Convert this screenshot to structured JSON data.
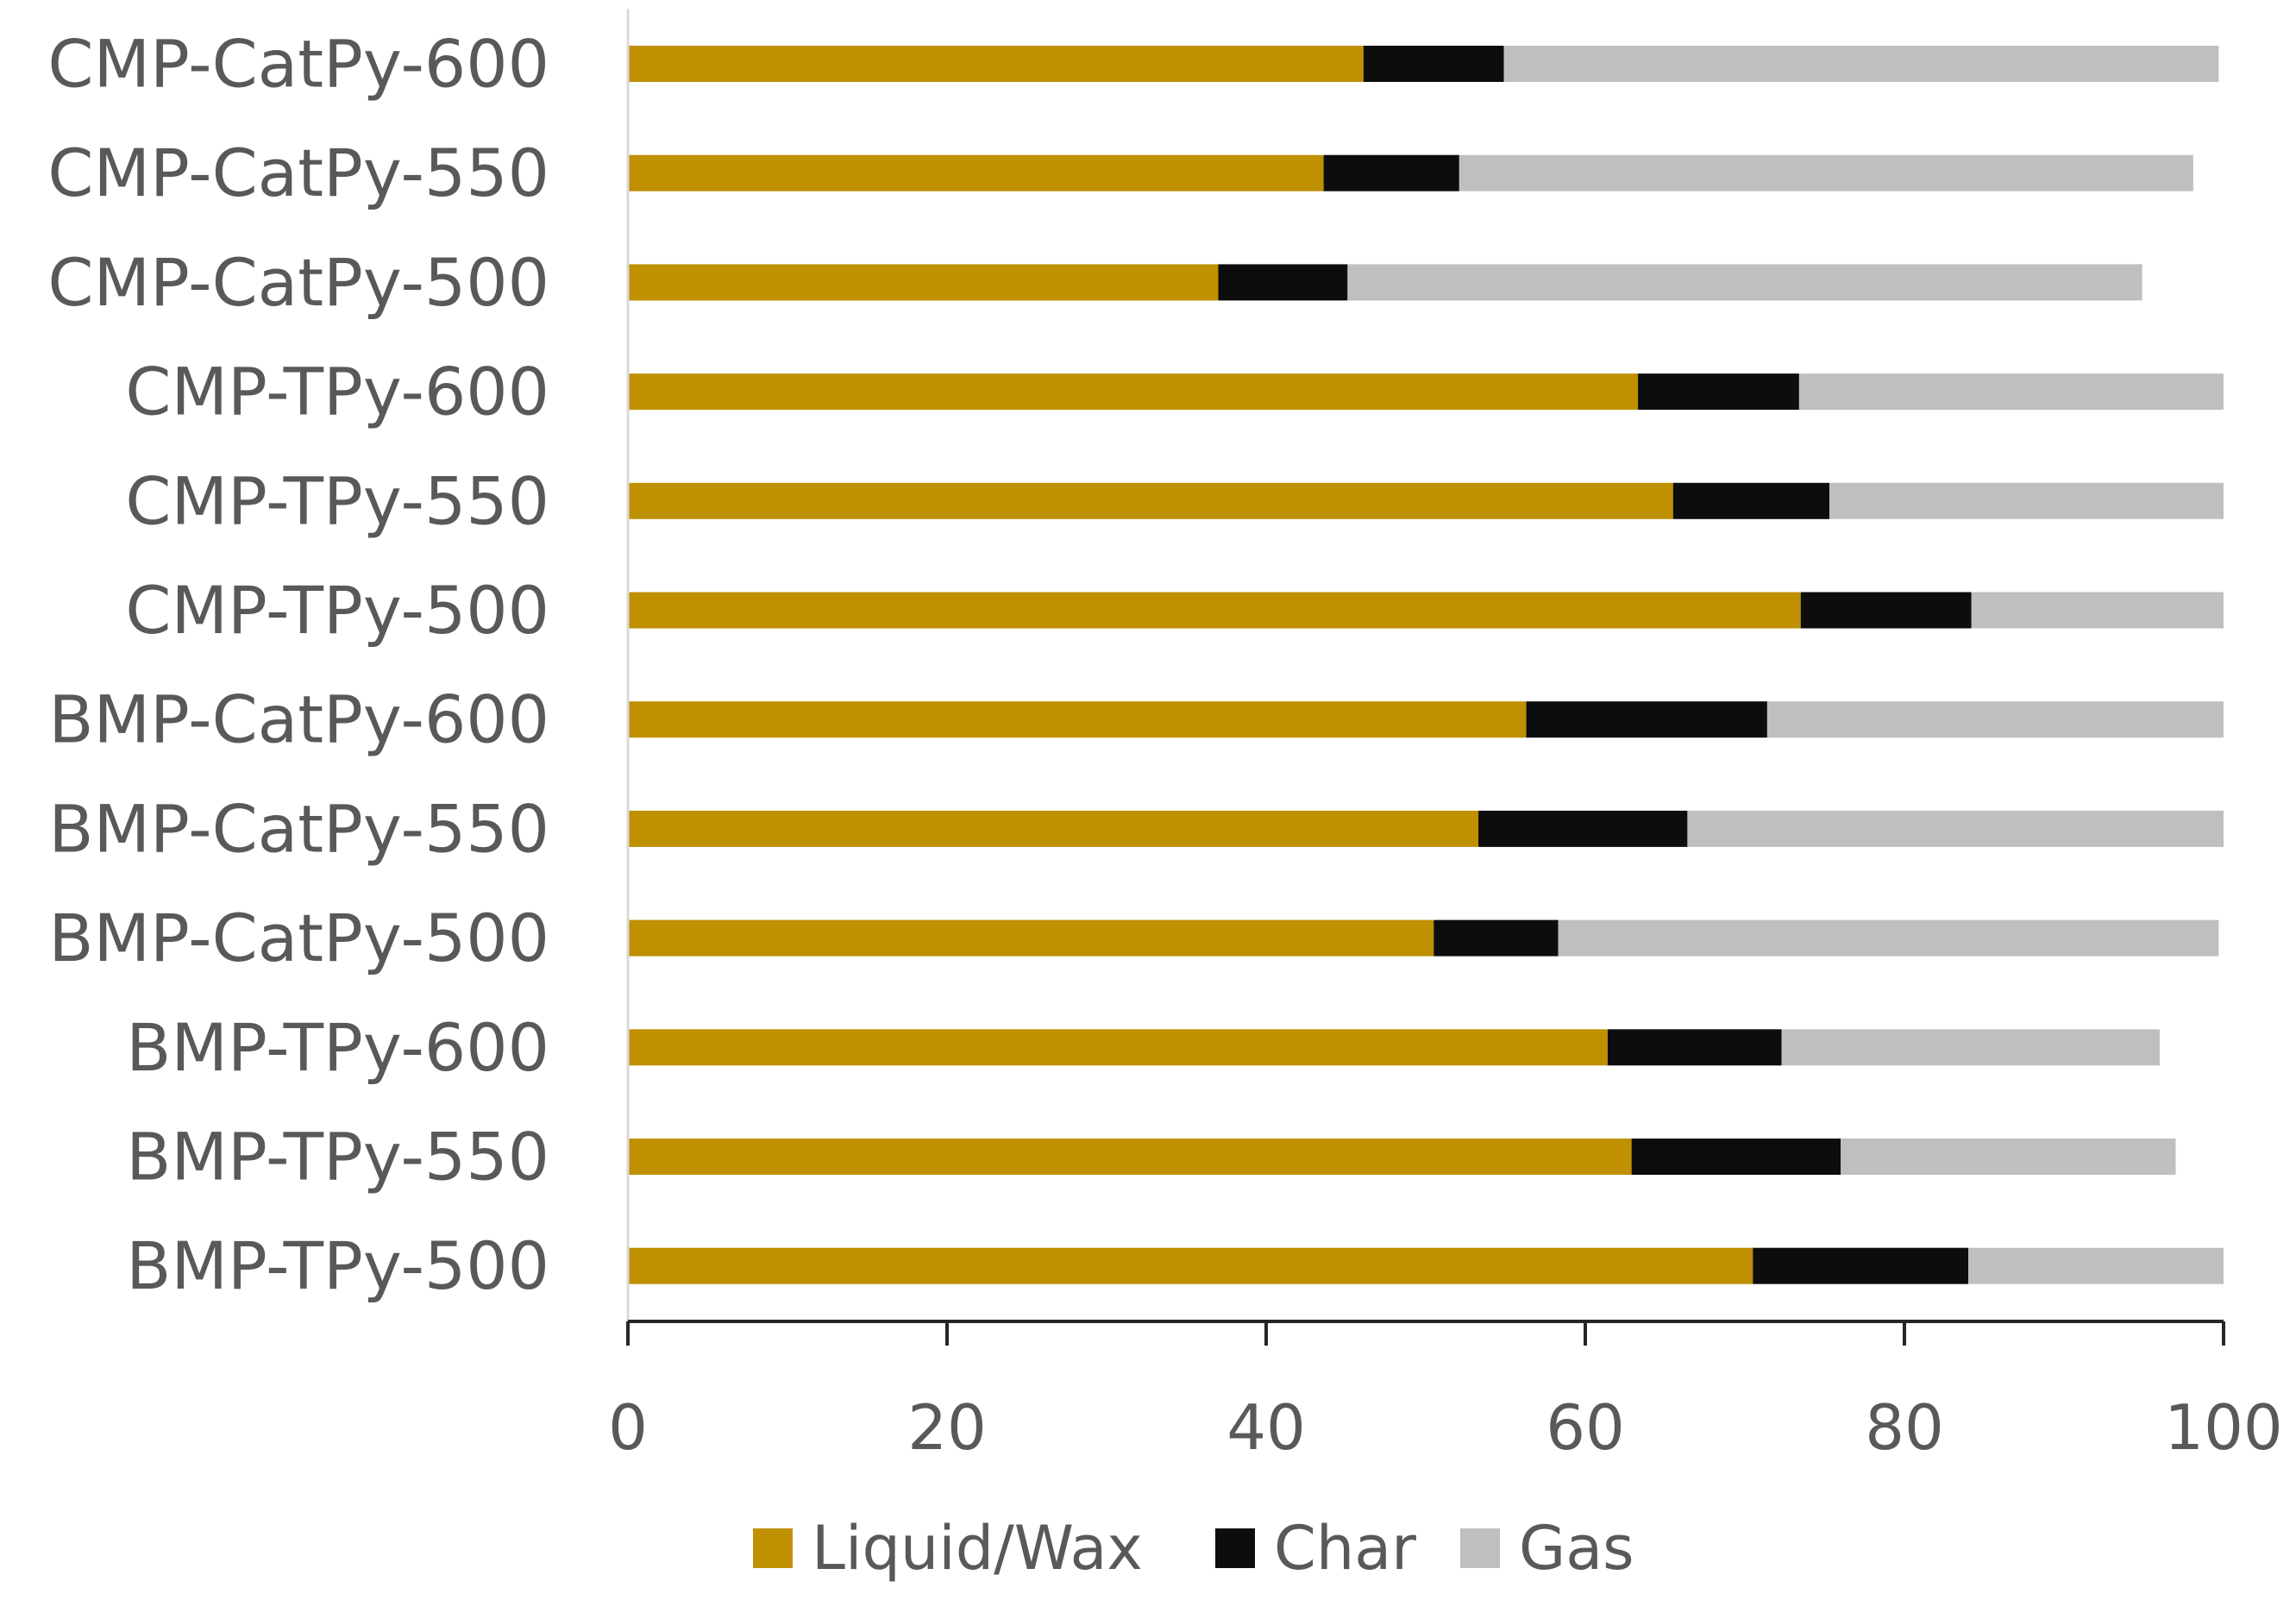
{
  "chart_data": {
    "type": "bar",
    "orientation": "horizontal",
    "stacked": true,
    "title": "",
    "xlabel": "",
    "ylabel": "",
    "xlim": [
      0,
      100
    ],
    "x_ticks": [
      "0",
      "20",
      "40",
      "60",
      "80",
      "100"
    ],
    "grid": false,
    "legend_position": "bottom",
    "categories": [
      "CMP-CatPy-600",
      "CMP-CatPy-550",
      "CMP-CatPy-500",
      "CMP-TPy-600",
      "CMP-TPy-550",
      "CMP-TPy-500",
      "BMP-CatPy-600",
      "BMP-CatPy-550",
      "BMP-CatPy-500",
      "BMP-TPy-600",
      "BMP-TPy-550",
      "BMP-TPy-500"
    ],
    "series": [
      {
        "name": "Liquid/Wax",
        "color": "#BF9000",
        "values": [
          46.1,
          43.6,
          37.0,
          63.3,
          65.5,
          73.5,
          56.3,
          53.3,
          50.5,
          61.4,
          62.9,
          70.5
        ]
      },
      {
        "name": "Char",
        "color": "#0D0D0D",
        "values": [
          8.8,
          8.5,
          8.1,
          10.1,
          9.8,
          10.7,
          15.1,
          13.1,
          7.8,
          10.9,
          13.1,
          13.5
        ]
      },
      {
        "name": "Gas",
        "color": "#BFBFBF",
        "values": [
          44.8,
          46.0,
          49.8,
          26.6,
          24.7,
          15.8,
          28.6,
          33.6,
          41.4,
          23.7,
          21.0,
          16.0
        ]
      }
    ]
  }
}
